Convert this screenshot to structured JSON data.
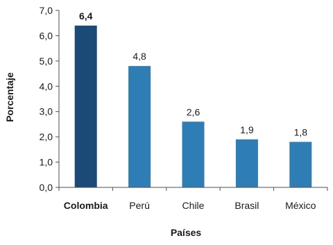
{
  "chart_data": {
    "type": "bar",
    "categories": [
      "Colombia",
      "Perú",
      "Chile",
      "Brasil",
      "México"
    ],
    "values": [
      6.4,
      4.8,
      2.6,
      1.9,
      1.8
    ],
    "value_labels": [
      "6,4",
      "4,8",
      "2,6",
      "1,9",
      "1,8"
    ],
    "highlight_category": "Colombia",
    "xlabel": "Países",
    "ylabel": "Porcentaje",
    "ylim": [
      0,
      7
    ],
    "yticks": [
      0,
      1,
      2,
      3,
      4,
      5,
      6,
      7
    ],
    "ytick_labels": [
      "0,0",
      "1,0",
      "2,0",
      "3,0",
      "4,0",
      "5,0",
      "6,0",
      "7,0"
    ],
    "grid": false,
    "legend": "none",
    "colors": {
      "highlight": "#1b4a78",
      "bar": "#2e7db5",
      "axis": "#4d4d4d",
      "text": "#1a1a1a"
    }
  }
}
